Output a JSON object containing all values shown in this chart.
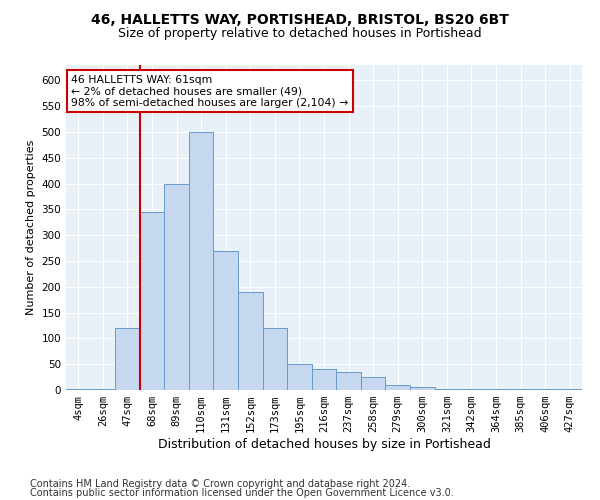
{
  "title1": "46, HALLETTS WAY, PORTISHEAD, BRISTOL, BS20 6BT",
  "title2": "Size of property relative to detached houses in Portishead",
  "xlabel": "Distribution of detached houses by size in Portishead",
  "ylabel": "Number of detached properties",
  "categories": [
    "4sqm",
    "26sqm",
    "47sqm",
    "68sqm",
    "89sqm",
    "110sqm",
    "131sqm",
    "152sqm",
    "173sqm",
    "195sqm",
    "216sqm",
    "237sqm",
    "258sqm",
    "279sqm",
    "300sqm",
    "321sqm",
    "342sqm",
    "364sqm",
    "385sqm",
    "406sqm",
    "427sqm"
  ],
  "values": [
    2,
    2,
    120,
    345,
    400,
    500,
    270,
    190,
    120,
    50,
    40,
    35,
    25,
    10,
    5,
    2,
    2,
    2,
    2,
    2,
    2
  ],
  "bar_color": "#c5d8f0",
  "bar_edge_color": "#6699cc",
  "vline_x_pos": 2.5,
  "vline_color": "#cc0000",
  "annotation_text": "46 HALLETTS WAY: 61sqm\n← 2% of detached houses are smaller (49)\n98% of semi-detached houses are larger (2,104) →",
  "annotation_box_color": "#ffffff",
  "annotation_box_edge_color": "#cc0000",
  "ylim": [
    0,
    630
  ],
  "yticks": [
    0,
    50,
    100,
    150,
    200,
    250,
    300,
    350,
    400,
    450,
    500,
    550,
    600
  ],
  "footer1": "Contains HM Land Registry data © Crown copyright and database right 2024.",
  "footer2": "Contains public sector information licensed under the Open Government Licence v3.0.",
  "background_color": "#e8f0f8",
  "grid_color": "#ffffff",
  "title1_fontsize": 10,
  "title2_fontsize": 9,
  "xlabel_fontsize": 9,
  "ylabel_fontsize": 8,
  "tick_fontsize": 7.5,
  "footer_fontsize": 7
}
